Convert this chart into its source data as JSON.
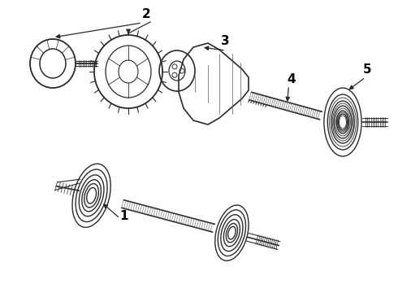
{
  "bg_color": "#ffffff",
  "line_color": "#2a2a2a",
  "label_color": "#000000",
  "figsize": [
    4.9,
    3.6
  ],
  "dpi": 100,
  "xlim": [
    0,
    490
  ],
  "ylim": [
    0,
    360
  ]
}
